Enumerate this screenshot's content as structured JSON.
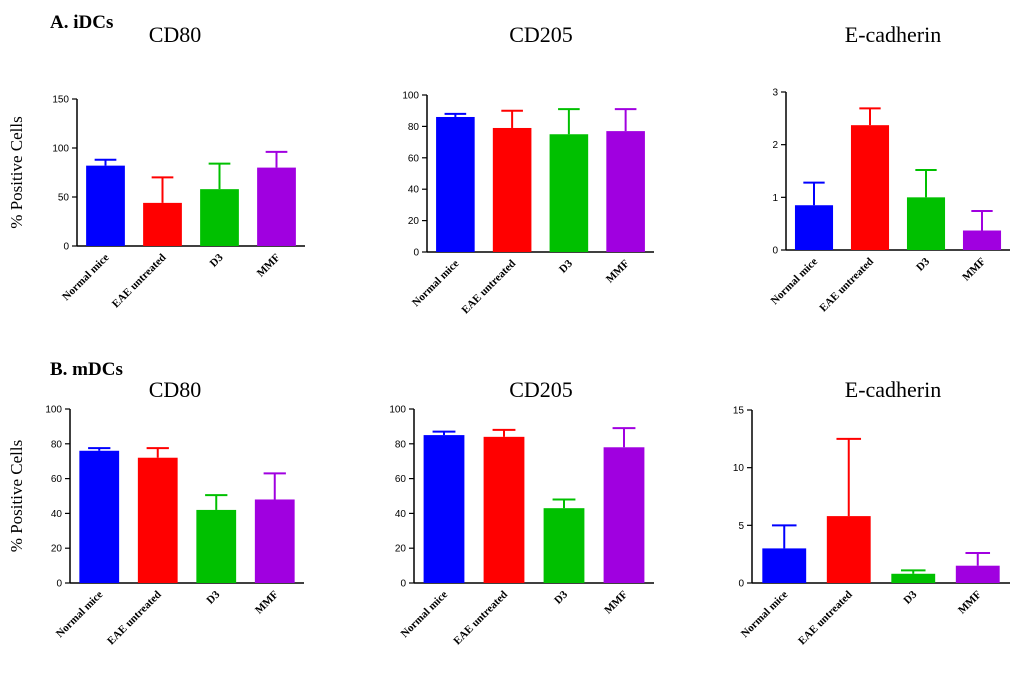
{
  "figure": {
    "panel_a_label": "A. iDCs",
    "panel_b_label": "B. mDCs",
    "y_axis_label": "% Positive Cells"
  },
  "chart_data": [
    {
      "id": "a1",
      "type": "bar",
      "title": "CD80",
      "ylabel": "% Positive Cells",
      "categories": [
        "Normal mice",
        "EAE untreated",
        "D3",
        "MMF"
      ],
      "values": [
        82,
        44,
        58,
        80
      ],
      "errors": [
        6,
        26,
        26,
        16
      ],
      "ylim": [
        0,
        150
      ],
      "yticks": [
        0,
        50,
        100,
        150
      ],
      "colors": [
        "#0000ff",
        "#ff0000",
        "#00c000",
        "#a000e0"
      ]
    },
    {
      "id": "a2",
      "type": "bar",
      "title": "CD205",
      "ylabel": "",
      "categories": [
        "Normal mice",
        "EAE untreated",
        "D3",
        "MMF"
      ],
      "values": [
        86,
        79,
        75,
        77
      ],
      "errors": [
        2,
        11,
        16,
        14
      ],
      "ylim": [
        0,
        100
      ],
      "yticks": [
        0,
        20,
        40,
        60,
        80,
        100
      ],
      "colors": [
        "#0000ff",
        "#ff0000",
        "#00c000",
        "#a000e0"
      ]
    },
    {
      "id": "a3",
      "type": "bar",
      "title": "E-cadherin",
      "ylabel": "",
      "categories": [
        "Normal mice",
        "EAE untreated",
        "D3",
        "MMF"
      ],
      "values": [
        0.85,
        2.37,
        1.0,
        0.37
      ],
      "errors": [
        0.43,
        0.32,
        0.52,
        0.37
      ],
      "ylim": [
        0,
        3
      ],
      "yticks": [
        0,
        1,
        2,
        3
      ],
      "colors": [
        "#0000ff",
        "#ff0000",
        "#00c000",
        "#a000e0"
      ]
    },
    {
      "id": "b1",
      "type": "bar",
      "title": "CD80",
      "ylabel": "% Positive Cells",
      "categories": [
        "Normal mice",
        "EAE untreated",
        "D3",
        "MMF"
      ],
      "values": [
        76,
        72,
        42,
        48
      ],
      "errors": [
        1.5,
        5.5,
        8.5,
        15
      ],
      "ylim": [
        0,
        100
      ],
      "yticks": [
        0,
        20,
        40,
        60,
        80,
        100
      ],
      "colors": [
        "#0000ff",
        "#ff0000",
        "#00c000",
        "#a000e0"
      ]
    },
    {
      "id": "b2",
      "type": "bar",
      "title": "CD205",
      "ylabel": "",
      "categories": [
        "Normal mice",
        "EAE untreated",
        "D3",
        "MMF"
      ],
      "values": [
        85,
        84,
        43,
        78
      ],
      "errors": [
        2,
        4,
        5,
        11
      ],
      "ylim": [
        0,
        100
      ],
      "yticks": [
        0,
        20,
        40,
        60,
        80,
        100
      ],
      "colors": [
        "#0000ff",
        "#ff0000",
        "#00c000",
        "#a000e0"
      ]
    },
    {
      "id": "b3",
      "type": "bar",
      "title": "E-cadherin",
      "ylabel": "",
      "categories": [
        "Normal mice",
        "EAE untreated",
        "D3",
        "MMF"
      ],
      "values": [
        3.0,
        5.8,
        0.8,
        1.5
      ],
      "errors": [
        2.0,
        6.7,
        0.3,
        1.1
      ],
      "ylim": [
        0,
        15
      ],
      "yticks": [
        0,
        5,
        10,
        15
      ],
      "colors": [
        "#0000ff",
        "#ff0000",
        "#00c000",
        "#a000e0"
      ]
    }
  ]
}
